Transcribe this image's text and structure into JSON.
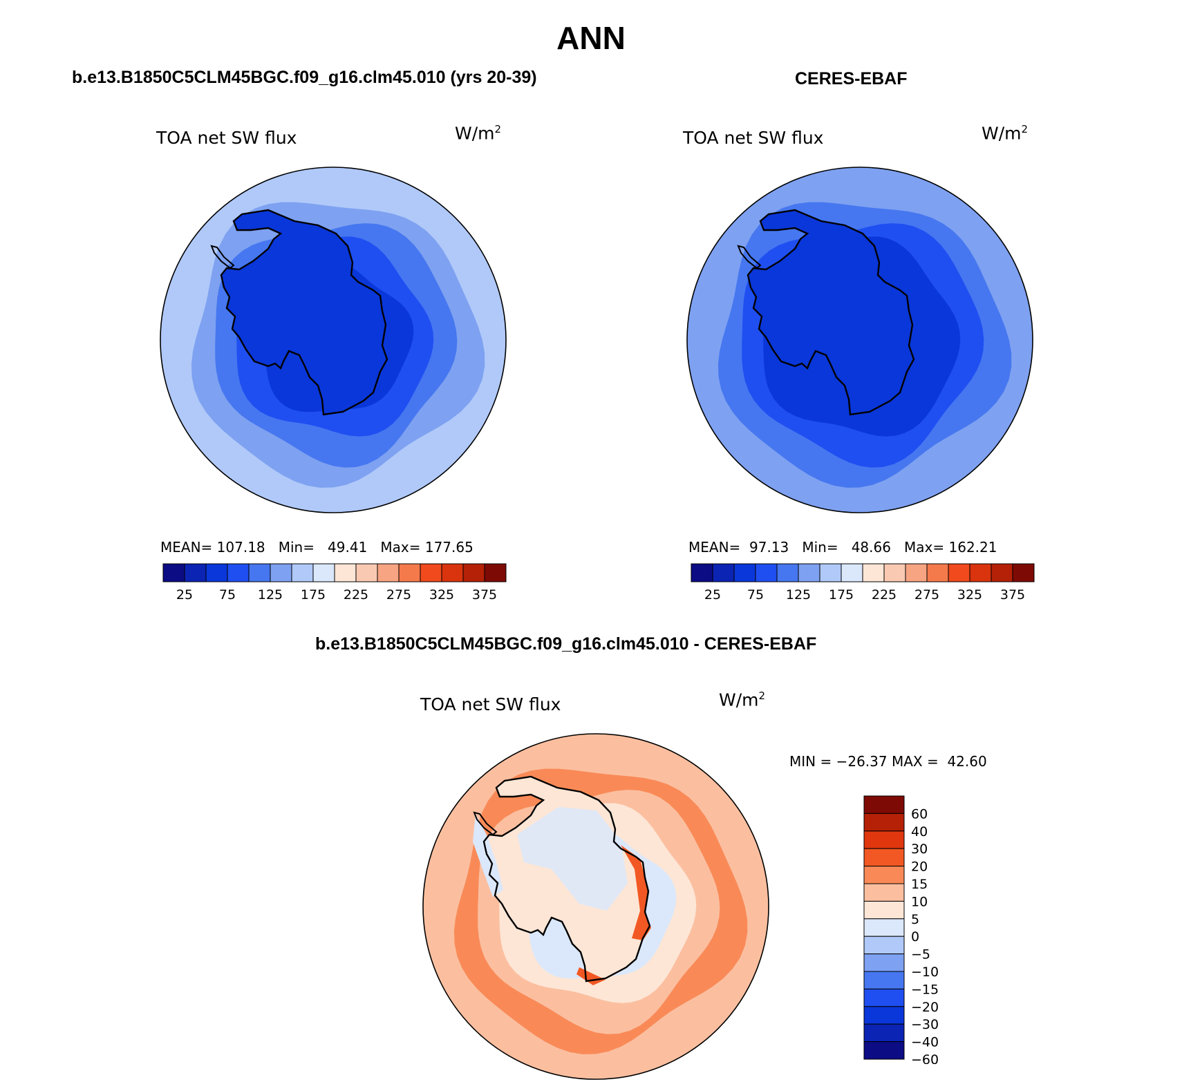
{
  "figure": {
    "title": "ANN"
  },
  "panels": [
    {
      "title": "b.e13.B1850C5CLM45BGC.f09_g16.clm45.010 (yrs 20-39)",
      "variable": "TOA net SW flux",
      "units": "W/m",
      "units_exp": "2",
      "stats": {
        "mean_label": "MEAN=",
        "mean": "107.18",
        "min_label": "Min=",
        "min": "49.41",
        "max_label": "Max=",
        "max": "177.65"
      }
    },
    {
      "title": "CERES-EBAF",
      "variable": "TOA net SW flux",
      "units": "W/m",
      "units_exp": "2",
      "stats": {
        "mean_label": "MEAN=",
        "mean": "97.13",
        "min_label": "Min=",
        "min": "48.66",
        "max_label": "Max=",
        "max": "162.21"
      }
    },
    {
      "title": "b.e13.B1850C5CLM45BGC.f09_g16.clm45.010 - CERES-EBAF",
      "variable": "TOA net SW flux",
      "units": "W/m",
      "units_exp": "2",
      "stats": {
        "min_label": "MIN =",
        "min": "−26.37",
        "max_label": "MAX =",
        "max": "42.60"
      }
    }
  ],
  "colorbars": {
    "absolute": {
      "orientation": "horizontal",
      "colors": [
        "#0c0c85",
        "#0b24b3",
        "#0a37d9",
        "#1f4ff1",
        "#4677f0",
        "#7ea1f1",
        "#b0c9f9",
        "#dbe8fb",
        "#fde6d6",
        "#fac9b1",
        "#f7a482",
        "#f57a4b",
        "#f04a1d",
        "#d9340e",
        "#b52106",
        "#7e0a05"
      ],
      "labels": [
        "25",
        "75",
        "125",
        "175",
        "225",
        "275",
        "325",
        "375"
      ]
    },
    "difference": {
      "orientation": "vertical",
      "colors": [
        "#7e0a05",
        "#b52106",
        "#e0370e",
        "#f25823",
        "#f98a57",
        "#fbbfa0",
        "#fde6d6",
        "#dbe8fb",
        "#b0c9f9",
        "#7ea1f1",
        "#4677f0",
        "#1f4ff1",
        "#0a37d9",
        "#0b24b3",
        "#0c0c85"
      ],
      "labels": [
        "60",
        "40",
        "30",
        "20",
        "15",
        "10",
        "5",
        "0",
        "−5",
        "−10",
        "−15",
        "−20",
        "−30",
        "−40",
        "−60"
      ]
    }
  },
  "map_colors": {
    "coast": "#000000",
    "p1_rings": [
      "#b0c9f9",
      "#7ea1f1",
      "#4677f0",
      "#1f4ff1",
      "#0a37d9"
    ],
    "p2_rings": [
      "#7ea1f1",
      "#4677f0",
      "#1f4ff1",
      "#0a37d9"
    ],
    "diff_rings": [
      "#fbbfa0",
      "#f98a57",
      "#fbbfa0",
      "#fde6d6",
      "#dbe8fb"
    ],
    "diff_land": "#fde6d6",
    "diff_land_patch": "#dbe8fb",
    "diff_hot": "#f25823"
  }
}
